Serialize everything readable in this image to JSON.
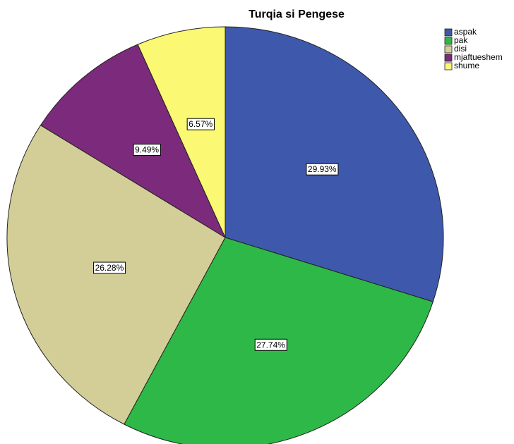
{
  "chart_data": {
    "type": "pie",
    "title": "Turqia si Pengese",
    "categories": [
      "aspak",
      "pak",
      "disi",
      "mjaftueshem",
      "shume"
    ],
    "values": [
      29.93,
      27.74,
      26.28,
      9.49,
      6.57
    ],
    "value_labels": [
      "29.93%",
      "27.74%",
      "26.28%",
      "9.49%",
      "6.57%"
    ],
    "colors": [
      "#3e58ac",
      "#2eb848",
      "#d3ce97",
      "#7b2a7c",
      "#fbf873"
    ],
    "legend": "top-right"
  }
}
